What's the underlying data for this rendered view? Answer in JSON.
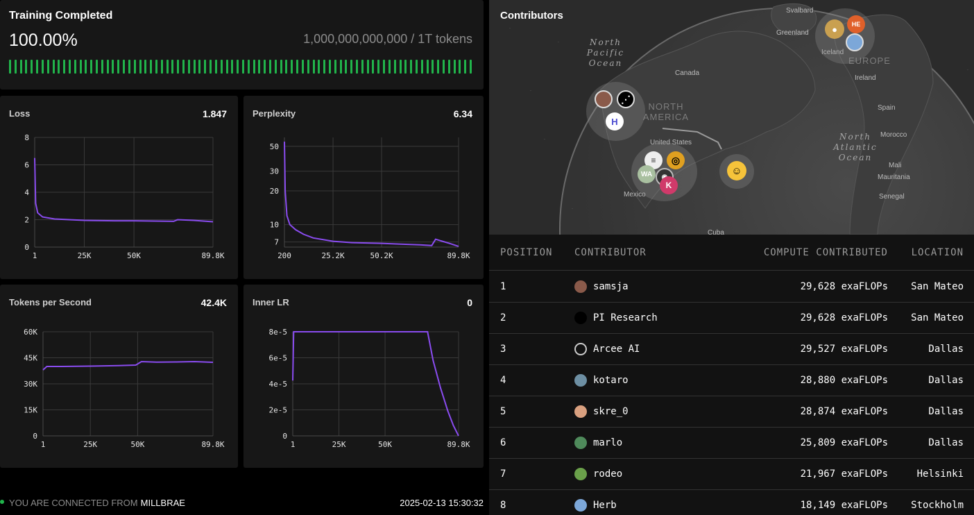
{
  "training": {
    "title": "Training Completed",
    "percent": "100.00%",
    "tokens": "1,000,000,000,000 / 1T tokens",
    "progress_fraction": 1.0
  },
  "charts": {
    "loss": {
      "title": "Loss",
      "value": "1.847"
    },
    "perplexity": {
      "title": "Perplexity",
      "value": "6.34"
    },
    "tps": {
      "title": "Tokens per Second",
      "value": "42.4K"
    },
    "lr": {
      "title": "Inner LR",
      "value": "0"
    }
  },
  "chart_data": [
    {
      "type": "line",
      "title": "Loss",
      "x_ticks": [
        "1",
        "25K",
        "50K",
        "89.8K"
      ],
      "y_ticks": [
        "0",
        "2",
        "4",
        "6",
        "8"
      ],
      "x": [
        1,
        500,
        1500,
        4000,
        10000,
        25000,
        40000,
        50000,
        60000,
        70000,
        72000,
        80000,
        89800
      ],
      "y": [
        6.5,
        3.2,
        2.5,
        2.2,
        2.05,
        1.95,
        1.92,
        1.92,
        1.9,
        1.88,
        2.0,
        1.95,
        1.85
      ],
      "xlim": [
        1,
        89800
      ],
      "ylim": [
        0,
        8
      ],
      "grid": true
    },
    {
      "type": "line",
      "title": "Perplexity",
      "x_ticks": [
        "200",
        "25.2K",
        "50.2K",
        "89.8K"
      ],
      "y_ticks": [
        "7",
        "10",
        "20",
        "30",
        "50"
      ],
      "x": [
        200,
        600,
        1500,
        3000,
        6000,
        10000,
        15000,
        25200,
        35000,
        50200,
        60000,
        70000,
        76000,
        78000,
        85000,
        89800
      ],
      "y": [
        55,
        20,
        12,
        10,
        9,
        8.2,
        7.6,
        7.1,
        6.9,
        6.8,
        6.7,
        6.6,
        6.5,
        7.4,
        6.8,
        6.4
      ],
      "xlim": [
        200,
        89800
      ],
      "scale": "log",
      "grid": true
    },
    {
      "type": "line",
      "title": "Tokens per Second",
      "x_ticks": [
        "1",
        "25K",
        "50K",
        "89.8K"
      ],
      "y_ticks": [
        "0",
        "15K",
        "30K",
        "45K",
        "60K"
      ],
      "x": [
        1,
        2000,
        10000,
        25000,
        40000,
        49000,
        52000,
        60000,
        70000,
        80000,
        89800
      ],
      "y": [
        38000,
        40000,
        40000,
        40200,
        40500,
        40800,
        42800,
        42500,
        42600,
        42800,
        42400
      ],
      "xlim": [
        1,
        89800
      ],
      "ylim": [
        0,
        60000
      ],
      "grid": true
    },
    {
      "type": "line",
      "title": "Inner LR",
      "x_ticks": [
        "1",
        "25K",
        "50K",
        "89.8K"
      ],
      "y_ticks": [
        "0",
        "2e-5",
        "4e-5",
        "6e-5",
        "8e-5"
      ],
      "x": [
        1,
        500,
        1000,
        10000,
        40000,
        73000,
        76000,
        80000,
        84000,
        87000,
        89800
      ],
      "y": [
        4.25e-05,
        8e-05,
        8e-05,
        8e-05,
        8e-05,
        8e-05,
        5.8e-05,
        3.7e-05,
        1.9e-05,
        8e-06,
        0
      ],
      "xlim": [
        1,
        89800
      ],
      "ylim": [
        0,
        8e-05
      ],
      "grid": true
    }
  ],
  "footer": {
    "connected_label": "YOU ARE CONNECTED FROM",
    "city": "MILLBRAE",
    "timestamp": "2025-02-13 15:30:32"
  },
  "map": {
    "title": "Contributors",
    "labels": {
      "north_pacific": "North Pacific Ocean",
      "north_atlantic": "North Atlantic Ocean",
      "north_america": "NORTH AMERICA",
      "europe": "EUROPE",
      "canada": "Canada",
      "united_states": "United States",
      "mexico": "Mexico",
      "cuba": "Cuba",
      "greenland": "Greenland",
      "svalbard": "Svalbard",
      "iceland": "Iceland",
      "ireland": "Ireland",
      "spain": "Spain",
      "morocco": "Morocco",
      "mali": "Mali",
      "mauritania": "Mauritania",
      "senegal": "Senegal"
    },
    "pins": {
      "he": "HE",
      "wa": "WA",
      "k": "K"
    }
  },
  "table": {
    "headers": {
      "position": "POSITION",
      "contributor": "CONTRIBUTOR",
      "compute": "COMPUTE CONTRIBUTED",
      "location": "LOCATION"
    },
    "rows": [
      {
        "position": "1",
        "name": "samsja",
        "compute": "29,628 exaFLOPs",
        "location": "San Mateo",
        "avatar_color": "#8a5a4a"
      },
      {
        "position": "2",
        "name": "PI Research",
        "compute": "29,628 exaFLOPs",
        "location": "San Mateo",
        "avatar_color": "#000000"
      },
      {
        "position": "3",
        "name": "Arcee AI",
        "compute": "29,527 exaFLOPs",
        "location": "Dallas",
        "avatar_color": "#121212"
      },
      {
        "position": "4",
        "name": "kotaro",
        "compute": "28,880 exaFLOPs",
        "location": "Dallas",
        "avatar_color": "#6d8fa3"
      },
      {
        "position": "5",
        "name": "skre_0",
        "compute": "28,874 exaFLOPs",
        "location": "Dallas",
        "avatar_color": "#d9a07f"
      },
      {
        "position": "6",
        "name": "marlo",
        "compute": "25,809 exaFLOPs",
        "location": "Dallas",
        "avatar_color": "#4f8a5b"
      },
      {
        "position": "7",
        "name": "rodeo",
        "compute": "21,967 exaFLOPs",
        "location": "Helsinki",
        "avatar_color": "#6aa04a"
      },
      {
        "position": "8",
        "name": "Herb",
        "compute": "18,149 exaFLOPs",
        "location": "Stockholm",
        "avatar_color": "#7ca7d8"
      }
    ]
  },
  "colors": {
    "accent_line": "#8a4cf0",
    "progress": "#21b44b",
    "panel": "#171717"
  }
}
